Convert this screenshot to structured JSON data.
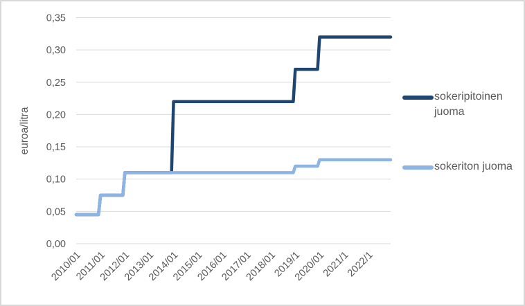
{
  "chart_data": {
    "type": "line",
    "subtype": "step-monthly",
    "title": "",
    "xlabel": "",
    "ylabel": "euroa/litra",
    "ylim": [
      0,
      0.35
    ],
    "grid": "horizontal-only",
    "legend_position": "right",
    "y_tick_values": [
      0,
      0.05,
      0.1,
      0.15,
      0.2,
      0.25,
      0.3,
      0.35
    ],
    "y_tick_labels": [
      "0,00",
      "0,05",
      "0,10",
      "0,15",
      "0,20",
      "0,25",
      "0,30",
      "0,35"
    ],
    "x_tick_labels": [
      "2010/01",
      "2011/01",
      "2012/01",
      "2013/01",
      "2014/01",
      "2015/01",
      "2016/01",
      "2017/01",
      "2018/01",
      "2019/1",
      "2020/01",
      "2021/1",
      "2022/1"
    ],
    "x_range_months": [
      "2010/01",
      "2022/12"
    ],
    "years": [
      2010,
      2011,
      2012,
      2013,
      2014,
      2015,
      2016,
      2017,
      2018,
      2019,
      2020,
      2021,
      2022
    ],
    "series": [
      {
        "name": "sokeripitoinen juoma",
        "color": "#1F4571",
        "values_by_year": [
          0.045,
          0.075,
          0.11,
          0.11,
          0.22,
          0.22,
          0.22,
          0.22,
          0.22,
          0.27,
          0.32,
          0.32,
          0.32
        ]
      },
      {
        "name": "sokeriton juoma",
        "color": "#8EB4E3",
        "values_by_year": [
          0.045,
          0.075,
          0.11,
          0.11,
          0.11,
          0.11,
          0.11,
          0.11,
          0.11,
          0.12,
          0.13,
          0.13,
          0.13
        ]
      }
    ]
  },
  "styles": {
    "text_color": "#595959",
    "gridline_color": "#D9D9D9",
    "frame_border_color": "#D8D8D8",
    "background": "#FFFFFF"
  }
}
